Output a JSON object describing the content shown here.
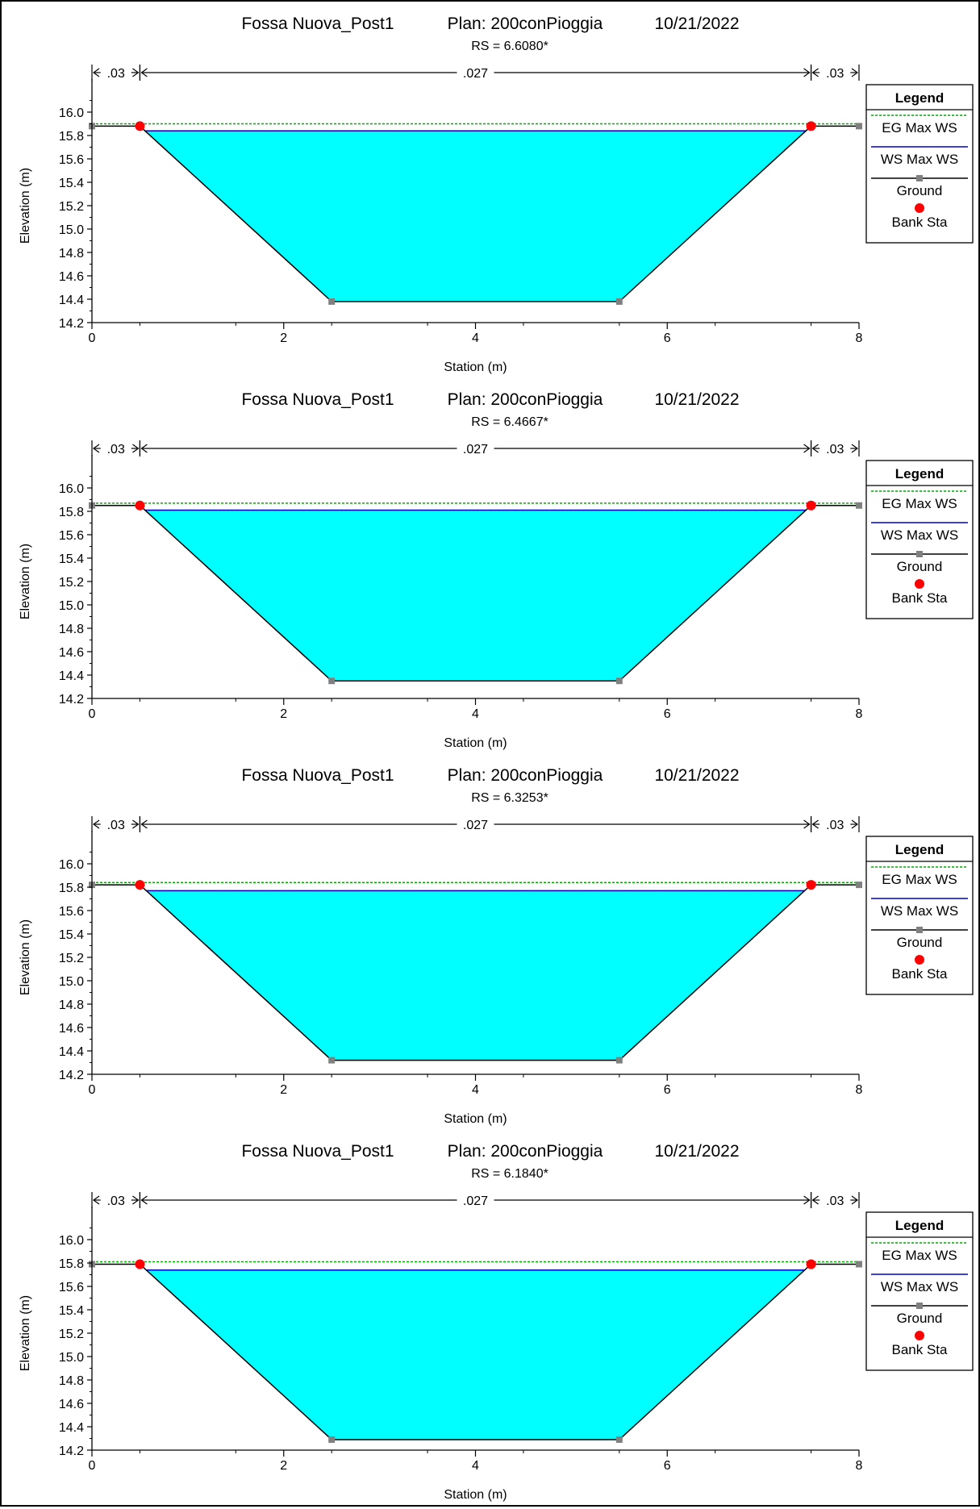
{
  "header": {
    "project": "Fossa Nuova_Post1",
    "plan": "Plan: 200conPioggia",
    "date": "10/21/2022"
  },
  "chart_data": [
    {
      "type": "area",
      "rs_label": "RS = 6.6080*",
      "xlabel": "Station (m)",
      "ylabel": "Elevation (m)",
      "xlim": [
        0,
        8
      ],
      "ylim": [
        14.2,
        16.2
      ],
      "xticks": [
        "0",
        "2",
        "4",
        "6",
        "8"
      ],
      "yticks": [
        "14.2",
        "14.4",
        "14.6",
        "14.8",
        "15.0",
        "15.2",
        "15.4",
        "15.6",
        "15.8",
        "16.0"
      ],
      "ground": [
        [
          0,
          15.88
        ],
        [
          0.5,
          15.88
        ],
        [
          2.5,
          14.38
        ],
        [
          5.5,
          14.38
        ],
        [
          7.5,
          15.88
        ],
        [
          8,
          15.88
        ]
      ],
      "bank_stations": [
        [
          0.5,
          15.88
        ],
        [
          7.5,
          15.88
        ]
      ],
      "ws_max": 15.84,
      "eg_max": 15.9,
      "mannings": [
        {
          "label": ".03",
          "from": 0,
          "to": 0.5
        },
        {
          "label": ".027",
          "from": 0.5,
          "to": 7.5
        },
        {
          "label": ".03",
          "from": 7.5,
          "to": 8
        }
      ]
    },
    {
      "type": "area",
      "rs_label": "RS = 6.4667*",
      "xlabel": "Station (m)",
      "ylabel": "Elevation (m)",
      "xlim": [
        0,
        8
      ],
      "ylim": [
        14.2,
        16.2
      ],
      "xticks": [
        "0",
        "2",
        "4",
        "6",
        "8"
      ],
      "yticks": [
        "14.2",
        "14.4",
        "14.6",
        "14.8",
        "15.0",
        "15.2",
        "15.4",
        "15.6",
        "15.8",
        "16.0"
      ],
      "ground": [
        [
          0,
          15.85
        ],
        [
          0.5,
          15.85
        ],
        [
          2.5,
          14.35
        ],
        [
          5.5,
          14.35
        ],
        [
          7.5,
          15.85
        ],
        [
          8,
          15.85
        ]
      ],
      "bank_stations": [
        [
          0.5,
          15.85
        ],
        [
          7.5,
          15.85
        ]
      ],
      "ws_max": 15.81,
      "eg_max": 15.87,
      "mannings": [
        {
          "label": ".03",
          "from": 0,
          "to": 0.5
        },
        {
          "label": ".027",
          "from": 0.5,
          "to": 7.5
        },
        {
          "label": ".03",
          "from": 7.5,
          "to": 8
        }
      ]
    },
    {
      "type": "area",
      "rs_label": "RS = 6.3253*",
      "xlabel": "Station (m)",
      "ylabel": "Elevation (m)",
      "xlim": [
        0,
        8
      ],
      "ylim": [
        14.2,
        16.2
      ],
      "xticks": [
        "0",
        "2",
        "4",
        "6",
        "8"
      ],
      "yticks": [
        "14.2",
        "14.4",
        "14.6",
        "14.8",
        "15.0",
        "15.2",
        "15.4",
        "15.6",
        "15.8",
        "16.0"
      ],
      "ground": [
        [
          0,
          15.82
        ],
        [
          0.5,
          15.82
        ],
        [
          2.5,
          14.32
        ],
        [
          5.5,
          14.32
        ],
        [
          7.5,
          15.82
        ],
        [
          8,
          15.82
        ]
      ],
      "bank_stations": [
        [
          0.5,
          15.82
        ],
        [
          7.5,
          15.82
        ]
      ],
      "ws_max": 15.77,
      "eg_max": 15.84,
      "mannings": [
        {
          "label": ".03",
          "from": 0,
          "to": 0.5
        },
        {
          "label": ".027",
          "from": 0.5,
          "to": 7.5
        },
        {
          "label": ".03",
          "from": 7.5,
          "to": 8
        }
      ]
    },
    {
      "type": "area",
      "rs_label": "RS = 6.1840*",
      "xlabel": "Station (m)",
      "ylabel": "Elevation (m)",
      "xlim": [
        0,
        8
      ],
      "ylim": [
        14.2,
        16.2
      ],
      "xticks": [
        "0",
        "2",
        "4",
        "6",
        "8"
      ],
      "yticks": [
        "14.2",
        "14.4",
        "14.6",
        "14.8",
        "15.0",
        "15.2",
        "15.4",
        "15.6",
        "15.8",
        "16.0"
      ],
      "ground": [
        [
          0,
          15.79
        ],
        [
          0.5,
          15.79
        ],
        [
          2.5,
          14.29
        ],
        [
          5.5,
          14.29
        ],
        [
          7.5,
          15.79
        ],
        [
          8,
          15.79
        ]
      ],
      "bank_stations": [
        [
          0.5,
          15.79
        ],
        [
          7.5,
          15.79
        ]
      ],
      "ws_max": 15.74,
      "eg_max": 15.81,
      "mannings": [
        {
          "label": ".03",
          "from": 0,
          "to": 0.5
        },
        {
          "label": ".027",
          "from": 0.5,
          "to": 7.5
        },
        {
          "label": ".03",
          "from": 7.5,
          "to": 8
        }
      ]
    }
  ],
  "legend": {
    "title": "Legend",
    "items": [
      {
        "label": "EG Max WS",
        "style": "eg"
      },
      {
        "label": "WS Max WS",
        "style": "ws"
      },
      {
        "label": "Ground",
        "style": "ground"
      },
      {
        "label": "Bank Sta",
        "style": "bank"
      }
    ]
  },
  "colors": {
    "water": "#00FFFF",
    "eg_line": "#00AA00",
    "ws_line": "#0000CC",
    "ground_line": "#000000",
    "ground_marker": "#808080",
    "bank_marker": "#FF0000"
  }
}
